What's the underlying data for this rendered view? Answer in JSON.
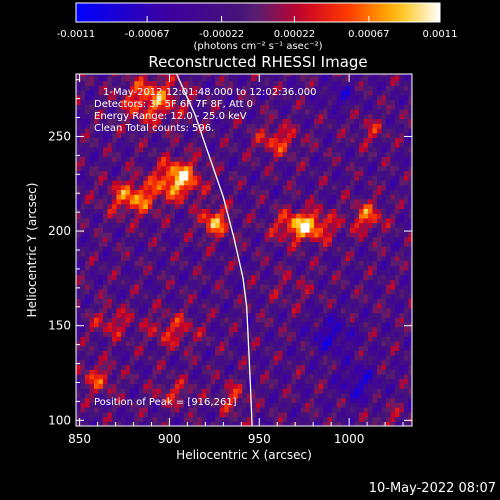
{
  "colorbar": {
    "ticks": [
      "-0.0011",
      "-0.00067",
      "-0.00022",
      "0.00022",
      "0.00067",
      "0.0011"
    ],
    "unit_label": "(photons cm⁻² s⁻¹ asec⁻²)"
  },
  "colors": {
    "background": "#000000",
    "limb": "#ffffff",
    "text": "#ffffff"
  },
  "annotations": {
    "time_range": "1-May-2012 12:01:48.000 to 12:02:36.000",
    "detectors": "Detectors: 3F 5F 6F 7F 8F, Att 0",
    "energy_range": "Energy Range: 12.0 - 25.0 keV",
    "clean": "Clean     Total counts: 596.",
    "peak": "Position of Peak = [916,261]"
  },
  "footer_date": "10-May-2022 08:07",
  "chart_data": {
    "type": "heatmap",
    "title": "Reconstructed RHESSI Image",
    "xlabel": "Heliocentric X (arcsec)",
    "ylabel": "Heliocentric Y (arcsec)",
    "xlim": [
      848,
      1035
    ],
    "ylim": [
      97,
      283
    ],
    "xticks": [
      850,
      900,
      950,
      1000
    ],
    "yticks": [
      100,
      150,
      200,
      250
    ],
    "colorscale_range": [
      -0.0011,
      0.0011
    ],
    "peak_position": [
      916,
      261
    ],
    "limb_curve": [
      [
        904,
        283
      ],
      [
        914,
        262
      ],
      [
        922,
        240
      ],
      [
        930,
        218
      ],
      [
        936,
        196
      ],
      [
        941,
        175
      ],
      [
        943,
        160
      ],
      [
        944,
        140
      ],
      [
        945,
        120
      ],
      [
        946,
        97
      ]
    ],
    "emission_sources": [
      {
        "x": 890,
        "y": 270,
        "amp": 0.0008,
        "sx": 16,
        "sy": 12
      },
      {
        "x": 905,
        "y": 228,
        "amp": 0.0011,
        "sx": 12,
        "sy": 10
      },
      {
        "x": 880,
        "y": 218,
        "amp": 0.00085,
        "sx": 14,
        "sy": 9
      },
      {
        "x": 925,
        "y": 205,
        "amp": 0.0009,
        "sx": 8,
        "sy": 8
      },
      {
        "x": 975,
        "y": 203,
        "amp": 0.0011,
        "sx": 15,
        "sy": 8
      },
      {
        "x": 960,
        "y": 248,
        "amp": 0.0006,
        "sx": 12,
        "sy": 8
      },
      {
        "x": 1010,
        "y": 208,
        "amp": 0.0007,
        "sx": 9,
        "sy": 8
      },
      {
        "x": 1012,
        "y": 253,
        "amp": 0.0004,
        "sx": 8,
        "sy": 7
      },
      {
        "x": 902,
        "y": 148,
        "amp": 0.0005,
        "sx": 14,
        "sy": 9
      },
      {
        "x": 868,
        "y": 152,
        "amp": 0.00045,
        "sx": 12,
        "sy": 8
      },
      {
        "x": 860,
        "y": 122,
        "amp": 0.00055,
        "sx": 10,
        "sy": 8
      },
      {
        "x": 902,
        "y": 115,
        "amp": 0.00045,
        "sx": 10,
        "sy": 7
      },
      {
        "x": 935,
        "y": 112,
        "amp": 0.0005,
        "sx": 8,
        "sy": 8
      },
      {
        "x": 968,
        "y": 170,
        "amp": 0.0002,
        "sx": 14,
        "sy": 10
      },
      {
        "x": 1022,
        "y": 102,
        "amp": 0.0003,
        "sx": 8,
        "sy": 6
      },
      {
        "x": 990,
        "y": 145,
        "amp": -0.0005,
        "sx": 12,
        "sy": 10
      },
      {
        "x": 1005,
        "y": 120,
        "amp": -0.0005,
        "sx": 10,
        "sy": 10
      },
      {
        "x": 995,
        "y": 272,
        "amp": -0.0004,
        "sx": 9,
        "sy": 6
      }
    ]
  }
}
